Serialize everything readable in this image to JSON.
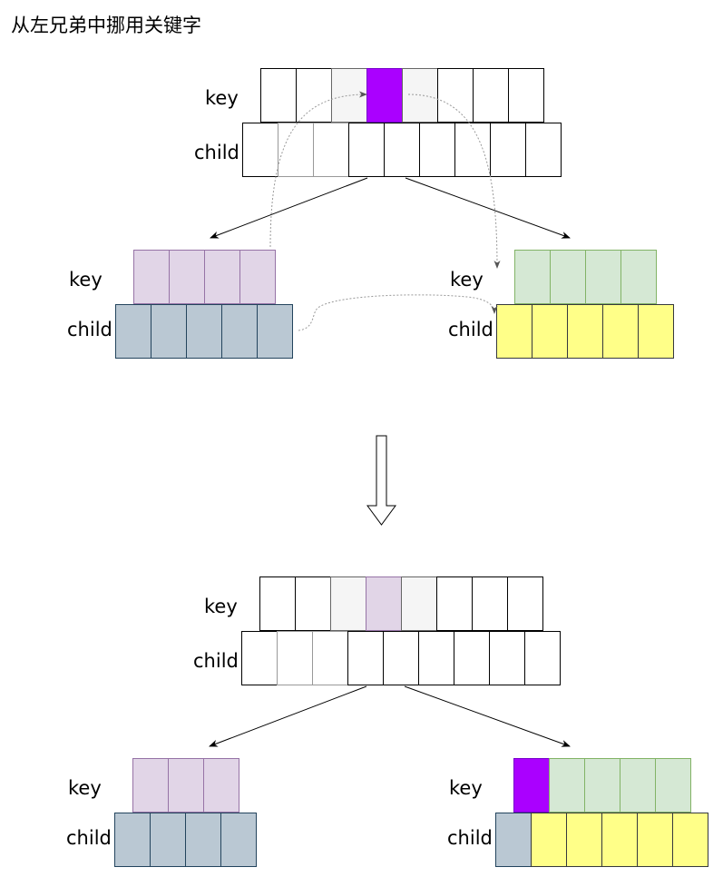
{
  "title": "从左兄弟中挪用关键字",
  "labels": {
    "key": "key",
    "child": "child"
  },
  "colors": {
    "white": "#ffffff",
    "light_gray": "#f5f5f5",
    "purple": "#aa00ff",
    "lavender": "#e1d5e7",
    "blue_gray": "#bac8d3",
    "light_green": "#d5e8d4",
    "yellow": "#ffff88"
  },
  "before": {
    "parent_keys": [
      "white",
      "white",
      "light_gray",
      "purple",
      "light_gray",
      "white",
      "white",
      "white"
    ],
    "parent_children": [
      "white",
      "wgray",
      "wgray",
      "white",
      "white",
      "white",
      "white",
      "white",
      "white"
    ],
    "left_keys": [
      "lavender",
      "lavender",
      "lavender",
      "lavender"
    ],
    "left_children": [
      "blue_gray",
      "blue_gray",
      "blue_gray",
      "blue_gray",
      "blue_gray"
    ],
    "right_keys": [
      "light_green",
      "light_green",
      "light_green",
      "light_green"
    ],
    "right_children": [
      "yellow",
      "yellow",
      "yellow",
      "yellow",
      "yellow"
    ]
  },
  "after": {
    "parent_keys": [
      "white",
      "white",
      "light_gray",
      "lavender",
      "light_gray",
      "white",
      "white",
      "white"
    ],
    "parent_children": [
      "white",
      "wgray",
      "wgray",
      "white",
      "white",
      "white",
      "white",
      "white",
      "white"
    ],
    "left_keys": [
      "lavender",
      "lavender",
      "lavender"
    ],
    "left_children": [
      "blue_gray",
      "blue_gray",
      "blue_gray",
      "blue_gray"
    ],
    "right_keys": [
      "purple",
      "light_green",
      "light_green",
      "light_green",
      "light_green"
    ],
    "right_children": [
      "blue_gray",
      "yellow",
      "yellow",
      "yellow",
      "yellow",
      "yellow"
    ]
  }
}
